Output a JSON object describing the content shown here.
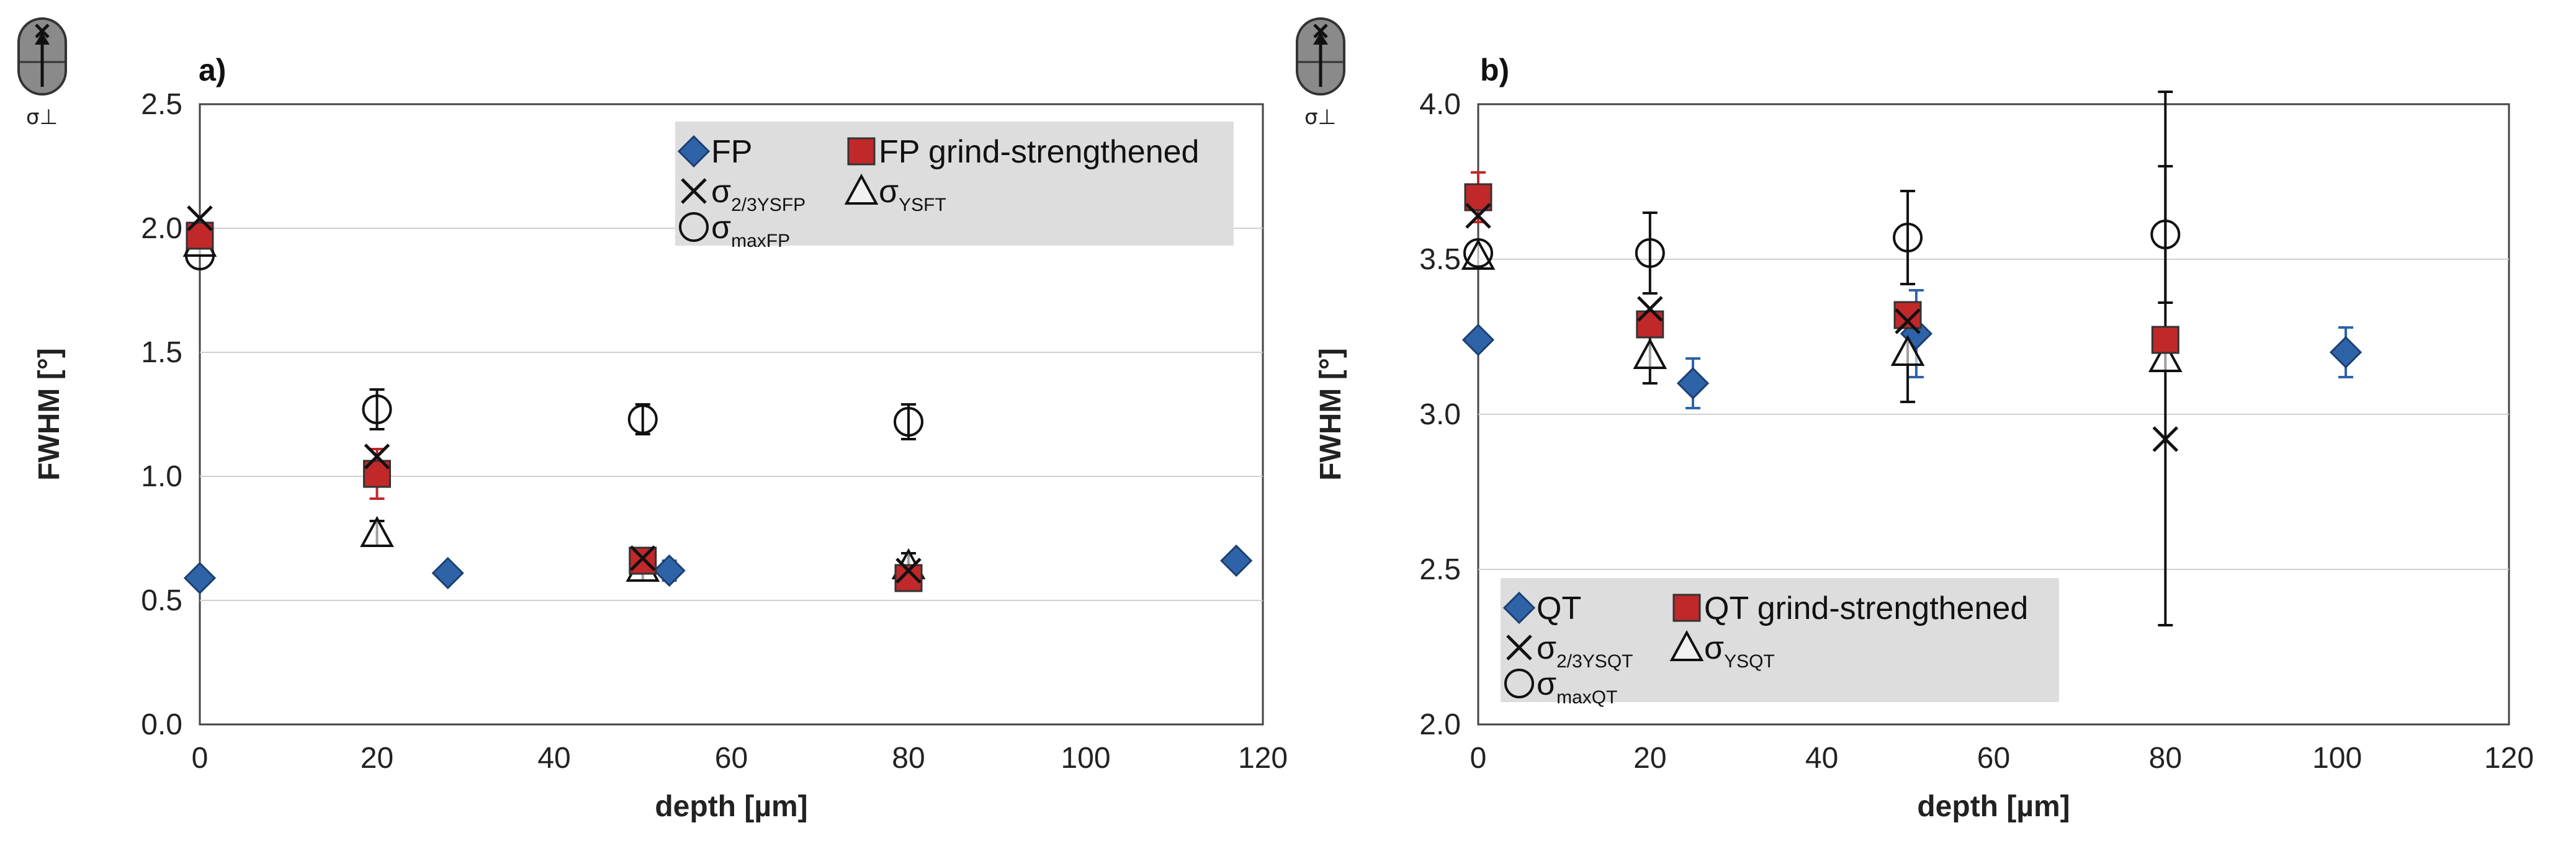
{
  "chart_data": [
    {
      "panel_label": "a)",
      "type": "scatter",
      "xlabel": "depth [µm]",
      "ylabel": "FWHM [°]",
      "xlim": [
        0,
        120
      ],
      "ylim": [
        0,
        2.5
      ],
      "xticks": [
        "0",
        "20",
        "40",
        "60",
        "80",
        "100",
        "120"
      ],
      "yticks": [
        "0.0",
        "0.5",
        "1.0",
        "1.5",
        "2.0",
        "2.5"
      ],
      "icon_label": "σ⊥",
      "series": [
        {
          "name": "FP",
          "marker": "diamond",
          "color": "#2e63a8",
          "points": [
            {
              "x": 0,
              "y": 0.59
            },
            {
              "x": 28,
              "y": 0.61
            },
            {
              "x": 53,
              "y": 0.62,
              "err": 0.04
            },
            {
              "x": 117,
              "y": 0.66
            }
          ]
        },
        {
          "name": "FP grind-strengthened",
          "marker": "square",
          "color": "#c0282a",
          "points": [
            {
              "x": 0,
              "y": 1.97
            },
            {
              "x": 20,
              "y": 1.01,
              "err": 0.1
            },
            {
              "x": 50,
              "y": 0.66
            },
            {
              "x": 80,
              "y": 0.59
            }
          ]
        },
        {
          "name": "σ",
          "sub": "2/3YSFP",
          "marker": "x",
          "color": "#111111",
          "points": [
            {
              "x": 0,
              "y": 2.04
            },
            {
              "x": 20,
              "y": 1.08
            },
            {
              "x": 50,
              "y": 0.67
            },
            {
              "x": 80,
              "y": 0.62
            }
          ]
        },
        {
          "name": "σ",
          "sub": "YSFT",
          "marker": "triangle",
          "color": "#111111",
          "points": [
            {
              "x": 0,
              "y": 1.94
            },
            {
              "x": 20,
              "y": 0.77,
              "err": 0.05
            },
            {
              "x": 50,
              "y": 0.63,
              "err": 0.05
            },
            {
              "x": 80,
              "y": 0.64,
              "err": 0.05
            }
          ]
        },
        {
          "name": "σ",
          "sub": "maxFP",
          "marker": "circle",
          "color": "#111111",
          "points": [
            {
              "x": 0,
              "y": 1.89
            },
            {
              "x": 20,
              "y": 1.27,
              "err": 0.08
            },
            {
              "x": 50,
              "y": 1.23,
              "err": 0.06
            },
            {
              "x": 80,
              "y": 1.22,
              "err": 0.07
            }
          ]
        }
      ]
    },
    {
      "panel_label": "b)",
      "type": "scatter",
      "xlabel": "depth [µm]",
      "ylabel": "FWHM [°]",
      "xlim": [
        0,
        120
      ],
      "ylim": [
        2.0,
        4.0
      ],
      "xticks": [
        "0",
        "20",
        "40",
        "60",
        "80",
        "100",
        "120"
      ],
      "yticks": [
        "2.0",
        "2.5",
        "3.0",
        "3.5",
        "4.0"
      ],
      "icon_label": "σ⊥",
      "series": [
        {
          "name": "QT",
          "marker": "diamond",
          "color": "#2e63a8",
          "points": [
            {
              "x": 0,
              "y": 3.24
            },
            {
              "x": 25,
              "y": 3.1,
              "err": 0.08
            },
            {
              "x": 51,
              "y": 3.26,
              "err": 0.14
            },
            {
              "x": 101,
              "y": 3.2,
              "err": 0.08
            }
          ]
        },
        {
          "name": "QT grind-strengthened",
          "marker": "square",
          "color": "#c0282a",
          "points": [
            {
              "x": 0,
              "y": 3.7,
              "err": 0.08
            },
            {
              "x": 20,
              "y": 3.29
            },
            {
              "x": 50,
              "y": 3.32
            },
            {
              "x": 80,
              "y": 3.24
            }
          ]
        },
        {
          "name": "σ",
          "sub": "2/3YSQT",
          "marker": "x",
          "color": "#111111",
          "points": [
            {
              "x": 0,
              "y": 3.64
            },
            {
              "x": 20,
              "y": 3.34
            },
            {
              "x": 50,
              "y": 3.3
            },
            {
              "x": 80,
              "y": 2.92
            }
          ]
        },
        {
          "name": "σ",
          "sub": "YSQT",
          "marker": "triangle",
          "color": "#111111",
          "points": [
            {
              "x": 0,
              "y": 3.51
            },
            {
              "x": 20,
              "y": 3.19,
              "err": 0.09
            },
            {
              "x": 50,
              "y": 3.2,
              "err": 0.16
            },
            {
              "x": 80,
              "y": 3.18,
              "err": 0.86
            }
          ]
        },
        {
          "name": "σ",
          "sub": "maxQT",
          "marker": "circle",
          "color": "#111111",
          "points": [
            {
              "x": 0,
              "y": 3.52
            },
            {
              "x": 20,
              "y": 3.52,
              "err": 0.13
            },
            {
              "x": 50,
              "y": 3.57,
              "err": 0.15
            },
            {
              "x": 80,
              "y": 3.58,
              "err": 0.22
            }
          ]
        }
      ]
    }
  ]
}
